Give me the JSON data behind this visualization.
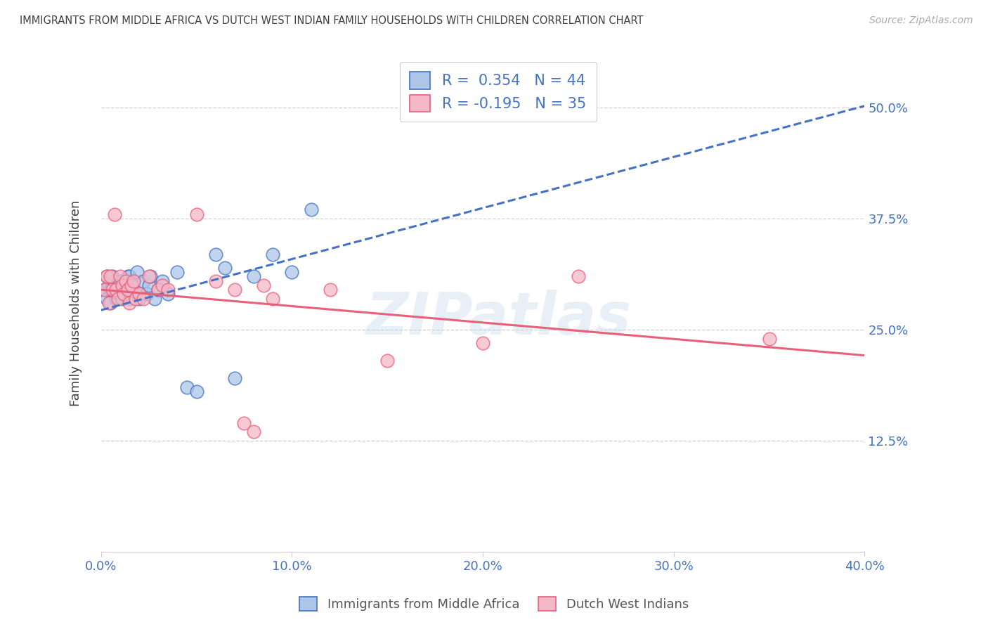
{
  "title": "IMMIGRANTS FROM MIDDLE AFRICA VS DUTCH WEST INDIAN FAMILY HOUSEHOLDS WITH CHILDREN CORRELATION CHART",
  "source": "Source: ZipAtlas.com",
  "ylabel": "Family Households with Children",
  "xticklabels": [
    "0.0%",
    "",
    "",
    "",
    "10.0%",
    "",
    "",
    "",
    "20.0%",
    "",
    "",
    "",
    "30.0%",
    "",
    "",
    "",
    "40.0%"
  ],
  "yticklabels_right": [
    "50.0%",
    "37.5%",
    "25.0%",
    "12.5%"
  ],
  "xlim": [
    0.0,
    0.4
  ],
  "ylim": [
    0.0,
    0.56
  ],
  "ytick_vals": [
    0.5,
    0.375,
    0.25,
    0.125
  ],
  "xtick_vals": [
    0.0,
    0.025,
    0.05,
    0.075,
    0.1,
    0.125,
    0.15,
    0.175,
    0.2,
    0.225,
    0.25,
    0.275,
    0.3,
    0.325,
    0.35,
    0.375,
    0.4
  ],
  "legend_labels": [
    "Immigrants from Middle Africa",
    "Dutch West Indians"
  ],
  "R1": 0.354,
  "N1": 44,
  "R2": -0.195,
  "N2": 35,
  "color1": "#adc6e8",
  "color2": "#f5b8c8",
  "trendline1_color": "#4472c4",
  "trendline2_color": "#e8607a",
  "background_color": "#ffffff",
  "grid_color": "#d0d0d0",
  "title_color": "#404040",
  "tick_color": "#4472c4",
  "watermark": "ZIPatlas",
  "scatter1_x": [
    0.002,
    0.003,
    0.003,
    0.004,
    0.005,
    0.005,
    0.006,
    0.006,
    0.007,
    0.007,
    0.008,
    0.008,
    0.009,
    0.01,
    0.01,
    0.011,
    0.012,
    0.013,
    0.014,
    0.015,
    0.015,
    0.016,
    0.017,
    0.018,
    0.019,
    0.02,
    0.022,
    0.024,
    0.025,
    0.026,
    0.028,
    0.03,
    0.032,
    0.035,
    0.04,
    0.045,
    0.05,
    0.06,
    0.065,
    0.07,
    0.08,
    0.09,
    0.1,
    0.11
  ],
  "scatter1_y": [
    0.295,
    0.31,
    0.285,
    0.3,
    0.295,
    0.28,
    0.3,
    0.31,
    0.295,
    0.305,
    0.285,
    0.295,
    0.3,
    0.29,
    0.305,
    0.285,
    0.3,
    0.295,
    0.31,
    0.285,
    0.31,
    0.295,
    0.305,
    0.29,
    0.315,
    0.285,
    0.305,
    0.29,
    0.3,
    0.31,
    0.285,
    0.295,
    0.305,
    0.29,
    0.315,
    0.185,
    0.18,
    0.335,
    0.32,
    0.195,
    0.31,
    0.335,
    0.315,
    0.385
  ],
  "scatter2_x": [
    0.002,
    0.003,
    0.004,
    0.005,
    0.006,
    0.007,
    0.008,
    0.009,
    0.01,
    0.011,
    0.012,
    0.013,
    0.014,
    0.015,
    0.016,
    0.017,
    0.018,
    0.02,
    0.022,
    0.025,
    0.03,
    0.032,
    0.035,
    0.05,
    0.06,
    0.07,
    0.075,
    0.08,
    0.085,
    0.09,
    0.12,
    0.15,
    0.2,
    0.25,
    0.35
  ],
  "scatter2_y": [
    0.295,
    0.31,
    0.28,
    0.31,
    0.295,
    0.38,
    0.295,
    0.285,
    0.31,
    0.3,
    0.29,
    0.305,
    0.295,
    0.28,
    0.3,
    0.305,
    0.285,
    0.29,
    0.285,
    0.31,
    0.295,
    0.3,
    0.295,
    0.38,
    0.305,
    0.295,
    0.145,
    0.135,
    0.3,
    0.285,
    0.295,
    0.215,
    0.235,
    0.31,
    0.24
  ]
}
